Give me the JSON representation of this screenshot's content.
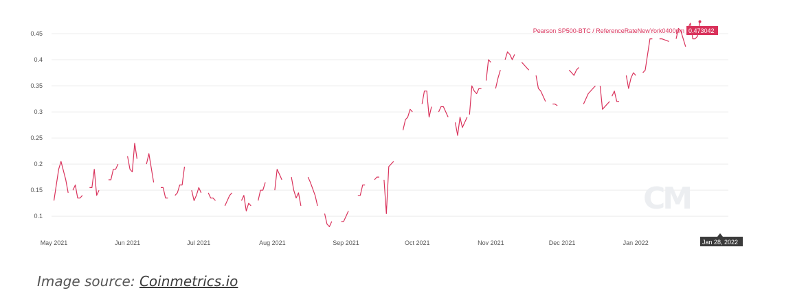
{
  "chart_data": {
    "type": "line",
    "title": "",
    "xlabel": "",
    "ylabel": "",
    "series": [
      {
        "name": "Pearson  SP500-BTC / ReferenceRateNewYork0400pm",
        "color": "#d9325b",
        "segments": [
          [
            [
              "2021-05-01",
              0.13
            ],
            [
              "2021-05-03",
              0.19
            ],
            [
              "2021-05-04",
              0.205
            ],
            [
              "2021-05-06",
              0.17
            ],
            [
              "2021-05-07",
              0.145
            ]
          ],
          [
            [
              "2021-05-09",
              0.15
            ],
            [
              "2021-05-10",
              0.16
            ],
            [
              "2021-05-11",
              0.135
            ],
            [
              "2021-05-12",
              0.135
            ],
            [
              "2021-05-13",
              0.14
            ]
          ],
          [
            [
              "2021-05-16",
              0.155
            ],
            [
              "2021-05-17",
              0.155
            ],
            [
              "2021-05-18",
              0.19
            ],
            [
              "2021-05-19",
              0.14
            ],
            [
              "2021-05-20",
              0.15
            ]
          ],
          [
            [
              "2021-05-24",
              0.17
            ],
            [
              "2021-05-25",
              0.17
            ],
            [
              "2021-05-26",
              0.19
            ],
            [
              "2021-05-27",
              0.19
            ],
            [
              "2021-05-28",
              0.2
            ]
          ],
          [
            [
              "2021-06-01",
              0.215
            ],
            [
              "2021-06-02",
              0.19
            ],
            [
              "2021-06-03",
              0.185
            ],
            [
              "2021-06-04",
              0.24
            ],
            [
              "2021-06-05",
              0.21
            ]
          ],
          [
            [
              "2021-06-09",
              0.2
            ],
            [
              "2021-06-10",
              0.22
            ],
            [
              "2021-06-12",
              0.165
            ]
          ],
          [
            [
              "2021-06-15",
              0.155
            ],
            [
              "2021-06-16",
              0.155
            ],
            [
              "2021-06-17",
              0.135
            ],
            [
              "2021-06-18",
              0.135
            ]
          ],
          [
            [
              "2021-06-21",
              0.14
            ],
            [
              "2021-06-22",
              0.145
            ],
            [
              "2021-06-23",
              0.16
            ],
            [
              "2021-06-24",
              0.16
            ],
            [
              "2021-06-25",
              0.195
            ]
          ],
          [
            [
              "2021-06-28",
              0.15
            ],
            [
              "2021-06-29",
              0.13
            ],
            [
              "2021-06-30",
              0.14
            ],
            [
              "2021-07-01",
              0.155
            ],
            [
              "2021-07-02",
              0.145
            ]
          ],
          [
            [
              "2021-07-05",
              0.145
            ],
            [
              "2021-07-06",
              0.135
            ],
            [
              "2021-07-07",
              0.135
            ],
            [
              "2021-07-08",
              0.13
            ]
          ],
          [
            [
              "2021-07-12",
              0.12
            ],
            [
              "2021-07-13",
              0.13
            ],
            [
              "2021-07-14",
              0.14
            ],
            [
              "2021-07-15",
              0.145
            ]
          ],
          [
            [
              "2021-07-19",
              0.13
            ],
            [
              "2021-07-20",
              0.14
            ],
            [
              "2021-07-21",
              0.11
            ],
            [
              "2021-07-22",
              0.125
            ],
            [
              "2021-07-23",
              0.12
            ]
          ],
          [
            [
              "2021-07-26",
              0.13
            ],
            [
              "2021-07-27",
              0.15
            ],
            [
              "2021-07-28",
              0.15
            ],
            [
              "2021-07-29",
              0.165
            ]
          ],
          [
            [
              "2021-08-02",
              0.15
            ],
            [
              "2021-08-03",
              0.19
            ],
            [
              "2021-08-04",
              0.18
            ],
            [
              "2021-08-05",
              0.17
            ]
          ],
          [
            [
              "2021-08-09",
              0.175
            ],
            [
              "2021-08-10",
              0.15
            ],
            [
              "2021-08-11",
              0.135
            ],
            [
              "2021-08-12",
              0.145
            ],
            [
              "2021-08-13",
              0.12
            ]
          ],
          [
            [
              "2021-08-16",
              0.175
            ],
            [
              "2021-08-17",
              0.165
            ],
            [
              "2021-08-19",
              0.14
            ],
            [
              "2021-08-20",
              0.12
            ]
          ],
          [
            [
              "2021-08-23",
              0.105
            ],
            [
              "2021-08-24",
              0.085
            ],
            [
              "2021-08-25",
              0.08
            ],
            [
              "2021-08-26",
              0.09
            ]
          ],
          [
            [
              "2021-08-30",
              0.09
            ],
            [
              "2021-08-31",
              0.09
            ],
            [
              "2021-09-01",
              0.1
            ],
            [
              "2021-09-02",
              0.11
            ]
          ],
          [
            [
              "2021-09-06",
              0.14
            ],
            [
              "2021-09-07",
              0.14
            ],
            [
              "2021-09-08",
              0.16
            ],
            [
              "2021-09-09",
              0.16
            ]
          ],
          [
            [
              "2021-09-13",
              0.17
            ],
            [
              "2021-09-14",
              0.175
            ],
            [
              "2021-09-15",
              0.175
            ]
          ],
          [
            [
              "2021-09-17",
              0.17
            ],
            [
              "2021-09-18",
              0.105
            ],
            [
              "2021-09-19",
              0.195
            ],
            [
              "2021-09-20",
              0.2
            ],
            [
              "2021-09-21",
              0.205
            ]
          ],
          [
            [
              "2021-09-25",
              0.265
            ],
            [
              "2021-09-26",
              0.285
            ],
            [
              "2021-09-27",
              0.29
            ],
            [
              "2021-09-28",
              0.305
            ],
            [
              "2021-09-29",
              0.3
            ]
          ],
          [
            [
              "2021-10-03",
              0.315
            ],
            [
              "2021-10-04",
              0.34
            ],
            [
              "2021-10-05",
              0.34
            ],
            [
              "2021-10-06",
              0.29
            ],
            [
              "2021-10-07",
              0.31
            ]
          ],
          [
            [
              "2021-10-10",
              0.3
            ],
            [
              "2021-10-11",
              0.31
            ],
            [
              "2021-10-12",
              0.31
            ],
            [
              "2021-10-14",
              0.29
            ]
          ],
          [
            [
              "2021-10-17",
              0.28
            ],
            [
              "2021-10-18",
              0.255
            ],
            [
              "2021-10-19",
              0.29
            ],
            [
              "2021-10-20",
              0.27
            ],
            [
              "2021-10-21",
              0.28
            ],
            [
              "2021-10-22",
              0.29
            ]
          ],
          [
            [
              "2021-10-23",
              0.295
            ],
            [
              "2021-10-24",
              0.35
            ],
            [
              "2021-10-25",
              0.34
            ],
            [
              "2021-10-26",
              0.335
            ],
            [
              "2021-10-27",
              0.345
            ],
            [
              "2021-10-28",
              0.345
            ]
          ],
          [
            [
              "2021-10-30",
              0.36
            ],
            [
              "2021-10-31",
              0.4
            ],
            [
              "2021-11-01",
              0.395
            ]
          ],
          [
            [
              "2021-11-03",
              0.345
            ],
            [
              "2021-11-04",
              0.365
            ],
            [
              "2021-11-05",
              0.38
            ]
          ],
          [
            [
              "2021-11-07",
              0.4
            ],
            [
              "2021-11-08",
              0.415
            ],
            [
              "2021-11-09",
              0.41
            ],
            [
              "2021-11-10",
              0.4
            ],
            [
              "2021-11-11",
              0.41
            ]
          ],
          [
            [
              "2021-11-14",
              0.395
            ],
            [
              "2021-11-15",
              0.39
            ],
            [
              "2021-11-16",
              0.385
            ],
            [
              "2021-11-17",
              0.38
            ]
          ],
          [
            [
              "2021-11-20",
              0.37
            ],
            [
              "2021-11-21",
              0.345
            ],
            [
              "2021-11-22",
              0.34
            ],
            [
              "2021-11-24",
              0.32
            ]
          ],
          [
            [
              "2021-11-27",
              0.315
            ],
            [
              "2021-11-28",
              0.315
            ],
            [
              "2021-11-29",
              0.312
            ]
          ],
          [
            [
              "2021-12-04",
              0.38
            ],
            [
              "2021-12-05",
              0.375
            ],
            [
              "2021-12-06",
              0.37
            ],
            [
              "2021-12-07",
              0.38
            ],
            [
              "2021-12-08",
              0.385
            ]
          ],
          [
            [
              "2021-12-10",
              0.315
            ],
            [
              "2021-12-12",
              0.335
            ],
            [
              "2021-12-14",
              0.345
            ],
            [
              "2021-12-15",
              0.35
            ]
          ],
          [
            [
              "2021-12-17",
              0.35
            ],
            [
              "2021-12-18",
              0.305
            ],
            [
              "2021-12-20",
              0.315
            ],
            [
              "2021-12-21",
              0.32
            ]
          ],
          [
            [
              "2021-12-22",
              0.33
            ],
            [
              "2021-12-23",
              0.34
            ],
            [
              "2021-12-24",
              0.32
            ],
            [
              "2021-12-25",
              0.32
            ]
          ],
          [
            [
              "2021-12-28",
              0.37
            ],
            [
              "2021-12-29",
              0.345
            ],
            [
              "2021-12-30",
              0.365
            ],
            [
              "2021-12-31",
              0.375
            ],
            [
              "2022-01-01",
              0.37
            ]
          ],
          [
            [
              "2022-01-04",
              0.375
            ],
            [
              "2022-01-05",
              0.38
            ],
            [
              "2022-01-07",
              0.44
            ],
            [
              "2022-01-08",
              0.44
            ]
          ],
          [
            [
              "2022-01-11",
              0.44
            ],
            [
              "2022-01-12",
              0.44
            ],
            [
              "2022-01-15",
              0.435
            ]
          ],
          [
            [
              "2022-01-18",
              0.44
            ],
            [
              "2022-01-19",
              0.46
            ],
            [
              "2022-01-20",
              0.455
            ],
            [
              "2022-01-21",
              0.44
            ],
            [
              "2022-01-22",
              0.425
            ]
          ],
          [
            [
              "2022-01-23",
              0.46
            ],
            [
              "2022-01-24",
              0.47
            ],
            [
              "2022-01-25",
              0.44
            ],
            [
              "2022-01-26",
              0.44
            ],
            [
              "2022-01-27",
              0.445
            ],
            [
              "2022-01-28",
              0.473042
            ]
          ]
        ]
      }
    ],
    "x_range": [
      "2021-04-30",
      "2022-02-09"
    ],
    "x_tick_dates": [
      "2021-05-01",
      "2021-06-01",
      "2021-07-01",
      "2021-08-01",
      "2021-09-01",
      "2021-10-01",
      "2021-11-01",
      "2021-12-01",
      "2022-01-01"
    ],
    "x_tick_labels": [
      "May 2021",
      "Jun 2021",
      "Jul 2021",
      "Aug 2021",
      "Sep 2021",
      "Oct 2021",
      "Nov 2021",
      "Dec 2021",
      "Jan 2022"
    ],
    "y_ticks": [
      0.1,
      0.15,
      0.2,
      0.25,
      0.3,
      0.35,
      0.4,
      0.45
    ],
    "y_tick_labels": [
      "0.1",
      "0.15",
      "0.2",
      "0.25",
      "0.3",
      "0.35",
      "0.4",
      "0.45"
    ],
    "ylim": [
      0.07,
      0.475
    ],
    "grid": true,
    "legend_position": "top-right",
    "current_value_label": "0.473042",
    "hover_date_label": "Jan 28, 2022",
    "watermark": "CM"
  },
  "caption": {
    "prefix": "Image source: ",
    "link_text": "Coinmetrics.io"
  }
}
